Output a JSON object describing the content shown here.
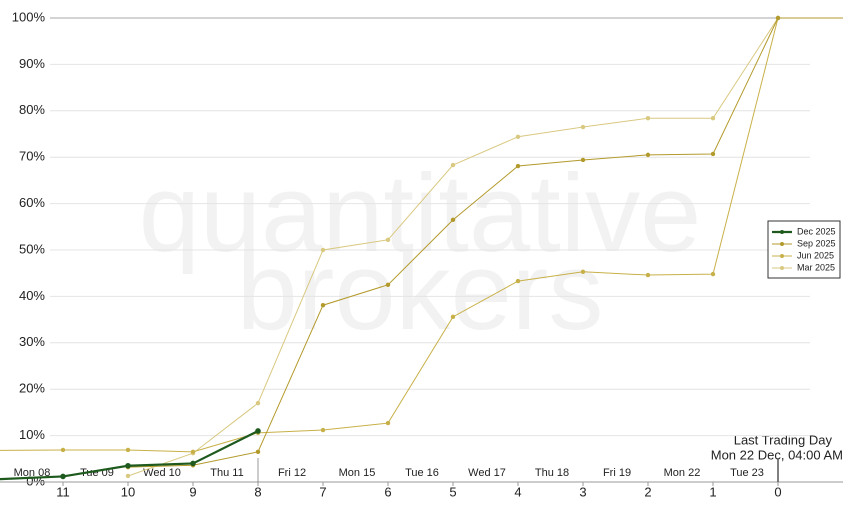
{
  "chart_data": {
    "type": "line",
    "watermark": [
      "quantitative",
      "brokers"
    ],
    "x": [
      12,
      11,
      10,
      9,
      8,
      7,
      6,
      5,
      4,
      3,
      2,
      1,
      0,
      -1
    ],
    "xlim": [
      12,
      -1
    ],
    "xticks": [
      11,
      10,
      9,
      8,
      7,
      6,
      5,
      4,
      3,
      2,
      1,
      0
    ],
    "date_labels": [
      "Mon 08",
      "Tue 09",
      "Wed 10",
      "Thu 11",
      "Fri 12",
      "Mon 15",
      "Tue 16",
      "Wed 17",
      "Thu 18",
      "Fri 19",
      "Mon 22",
      "Tue 23"
    ],
    "ylim": [
      0,
      100
    ],
    "yticks": [
      {
        "value": 0,
        "label": "0%"
      },
      {
        "value": 10,
        "label": "10%"
      },
      {
        "value": 20,
        "label": "20%"
      },
      {
        "value": 30,
        "label": "30%"
      },
      {
        "value": 40,
        "label": "40%"
      },
      {
        "value": 50,
        "label": "50%"
      },
      {
        "value": 60,
        "label": "60%"
      },
      {
        "value": 70,
        "label": "70%"
      },
      {
        "value": 80,
        "label": "80%"
      },
      {
        "value": 90,
        "label": "90%"
      },
      {
        "value": 100,
        "label": "100%"
      }
    ],
    "grid": true,
    "annotation": [
      "Last Trading Day",
      "Mon 22 Dec, 04:00 AM"
    ],
    "series": [
      {
        "name": "Dec 2025",
        "color": "#1e5a1e",
        "values": [
          0.6,
          1.2,
          3.5,
          4.0,
          11.0,
          null,
          null,
          null,
          null,
          null,
          null,
          null,
          null,
          null
        ]
      },
      {
        "name": "Sep 2025",
        "color": "#b39a2c",
        "values": [
          null,
          null,
          3.2,
          3.6,
          6.5,
          38.1,
          42.5,
          56.5,
          68.1,
          69.4,
          70.5,
          70.7,
          100,
          100
        ]
      },
      {
        "name": "Jun 2025",
        "color": "#c8b048",
        "values": [
          6.8,
          6.9,
          6.9,
          6.5,
          10.6,
          11.2,
          12.7,
          35.6,
          43.3,
          45.3,
          44.6,
          44.8,
          100,
          100
        ]
      },
      {
        "name": "Mar 2025",
        "color": "#d9c880",
        "values": [
          null,
          null,
          1.3,
          6.2,
          17.0,
          50.0,
          52.2,
          68.3,
          74.4,
          76.5,
          78.4,
          78.4,
          100,
          100
        ]
      }
    ]
  }
}
